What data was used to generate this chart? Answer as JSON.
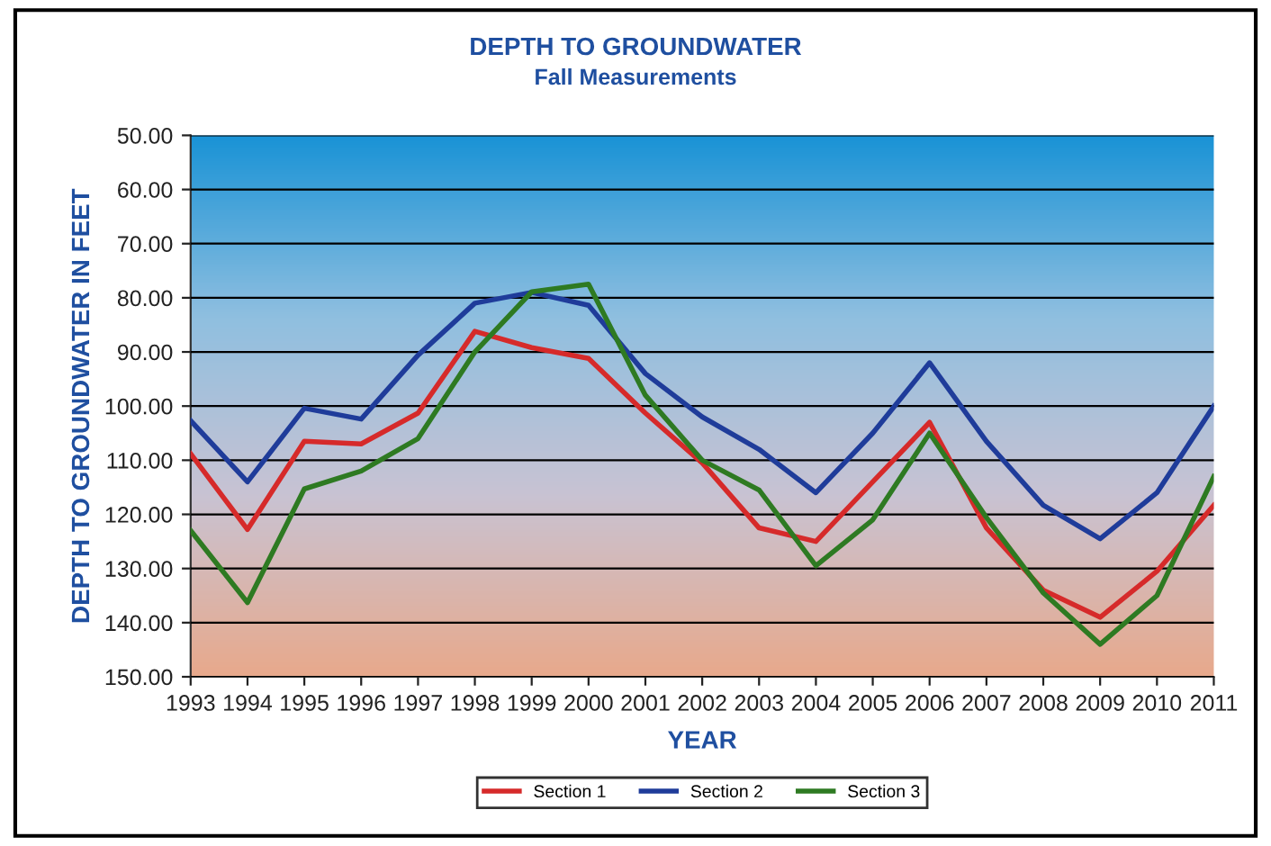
{
  "chart_data": {
    "type": "line",
    "title": "DEPTH TO GROUNDWATER",
    "subtitle": "Fall Measurements",
    "xlabel": "YEAR",
    "ylabel": "DEPTH TO GROUNDWATER IN FEET",
    "categories": [
      "1993",
      "1994",
      "1995",
      "1996",
      "1997",
      "1998",
      "1999",
      "2000",
      "2001",
      "2002",
      "2003",
      "2004",
      "2005",
      "2006",
      "2007",
      "2008",
      "2009",
      "2010",
      "2011"
    ],
    "series": [
      {
        "name": "Section 1",
        "color": "#d62a2a",
        "values": [
          108.8,
          122.8,
          106.5,
          107,
          101.3,
          86.2,
          89.2,
          91.2,
          101.3,
          110.5,
          122.5,
          125,
          114,
          103,
          122.5,
          134,
          139,
          130.5,
          118.3
        ]
      },
      {
        "name": "Section 2",
        "color": "#1f3c9a",
        "values": [
          102.7,
          114,
          100.4,
          102.4,
          90.6,
          81,
          79,
          81.4,
          94,
          102,
          108,
          116,
          105,
          92,
          106.5,
          118.3,
          124.5,
          116,
          100
        ]
      },
      {
        "name": "Section 3",
        "color": "#2e7a22",
        "values": [
          123,
          136.3,
          115.3,
          112,
          106,
          90,
          78.9,
          77.5,
          98,
          110,
          115.5,
          129.5,
          121,
          105,
          120.6,
          134.5,
          144,
          135,
          113
        ]
      }
    ],
    "ylim": [
      150,
      50
    ],
    "yticks": [
      {
        "value": 50,
        "label": "50.00"
      },
      {
        "value": 60,
        "label": "60.00"
      },
      {
        "value": 70,
        "label": "70.00"
      },
      {
        "value": 80,
        "label": "80.00"
      },
      {
        "value": 90,
        "label": "90.00"
      },
      {
        "value": 100,
        "label": "100.00"
      },
      {
        "value": 110,
        "label": "110.00"
      },
      {
        "value": 120,
        "label": "120.00"
      },
      {
        "value": 130,
        "label": "130.00"
      },
      {
        "value": 140,
        "label": "140.00"
      },
      {
        "value": 150,
        "label": "150.00"
      }
    ],
    "grid": "y",
    "legend": "bottom",
    "marker": "none",
    "line_style": "solid"
  }
}
